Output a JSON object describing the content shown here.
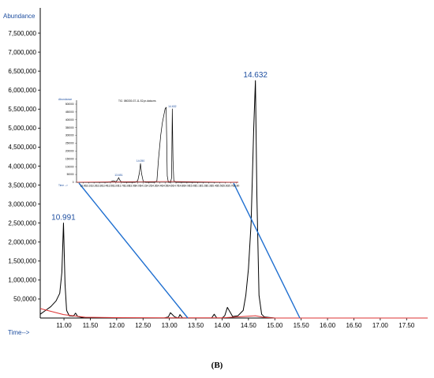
{
  "caption": "(B)",
  "chart_data": [
    {
      "type": "line",
      "ylabel": "Abundance",
      "xlabel": "Time-->",
      "xlim": [
        10.55,
        17.9
      ],
      "ylim": [
        0,
        7500000
      ],
      "x_ticks": [
        "11.00",
        "11.50",
        "12.00",
        "12.50",
        "13.00",
        "13.50",
        "14.00",
        "14.50",
        "15.00",
        "15.50",
        "16.00",
        "16.50",
        "17.00",
        "17.50"
      ],
      "x_tick_values": [
        11.0,
        11.5,
        12.0,
        12.5,
        13.0,
        13.5,
        14.0,
        14.5,
        15.0,
        15.5,
        16.0,
        16.5,
        17.0,
        17.5
      ],
      "y_ticks": [
        "50,0000",
        "1,000,000",
        "1,500,000",
        "2,000,000",
        "2,500,000",
        "3,000,000",
        "3,500,000",
        "4,000,000",
        "4,500,000",
        "5,000,000",
        "5,500,000",
        "6,000,000",
        "6,500,000",
        "7,000,000",
        "7,500,000"
      ],
      "y_tick_values": [
        500000,
        1000000,
        1500000,
        2000000,
        2500000,
        3000000,
        3500000,
        4000000,
        4500000,
        5000000,
        5500000,
        6000000,
        6500000,
        7000000,
        7500000
      ],
      "grid": false,
      "peak_labels": [
        {
          "text": "10.991",
          "x": 10.991,
          "y": 2500000
        },
        {
          "text": "14.632",
          "x": 14.632,
          "y": 6250000
        }
      ],
      "series": [
        {
          "color": "#000000",
          "x": [
            10.55,
            10.65,
            10.75,
            10.85,
            10.92,
            10.96,
            10.991,
            11.02,
            11.05,
            11.1,
            11.18,
            11.22,
            11.26,
            11.4,
            12.0,
            12.9,
            12.98,
            13.02,
            13.1,
            13.17,
            13.2,
            13.25,
            13.8,
            13.85,
            13.9,
            14.0,
            14.05,
            14.1,
            14.2,
            14.3,
            14.4,
            14.45,
            14.5,
            14.55,
            14.6,
            14.632,
            14.66,
            14.7,
            14.75,
            14.8,
            15.0,
            16.0,
            17.0,
            17.9
          ],
          "y": [
            100000,
            200000,
            300000,
            450000,
            650000,
            1200000,
            2500000,
            900000,
            200000,
            60000,
            50000,
            130000,
            40000,
            0,
            0,
            0,
            30000,
            140000,
            30000,
            0,
            90000,
            0,
            0,
            100000,
            0,
            0,
            60000,
            280000,
            40000,
            60000,
            200000,
            600000,
            1300000,
            2500000,
            5000000,
            6250000,
            3200000,
            600000,
            100000,
            30000,
            0,
            0,
            0,
            0
          ]
        },
        {
          "color": "#dd3333",
          "x": [
            10.55,
            10.991,
            11.4,
            12.0,
            13.0,
            14.0,
            14.4,
            14.632,
            14.8,
            15.0,
            16.0,
            17.0,
            17.9
          ],
          "y": [
            250000,
            90000,
            20000,
            10000,
            5000,
            5000,
            40000,
            60000,
            15000,
            0,
            0,
            0,
            0
          ]
        }
      ]
    },
    {
      "type": "line",
      "ylabel": "Abundance",
      "xlabel": "Time -->",
      "title": "TIC: 080330-37-11-S2.pr-data.ms",
      "xlim": [
        12.88,
        15.84
      ],
      "ylim": [
        0,
        500000
      ],
      "y_ticks": [
        "500000",
        "450000",
        "400000",
        "350000",
        "300000",
        "250000",
        "200000",
        "150000",
        "100000",
        "50000",
        "0"
      ],
      "y_tick_values": [
        500000,
        450000,
        400000,
        350000,
        300000,
        250000,
        200000,
        150000,
        100000,
        50000,
        0
      ],
      "x_ticks": [
        "13.00",
        "13.10",
        "13.20",
        "13.30",
        "13.40",
        "13.50",
        "13.60",
        "13.70",
        "13.80",
        "13.90",
        "14.00",
        "14.10",
        "14.20",
        "14.30",
        "14.40",
        "14.50",
        "14.60",
        "14.70",
        "14.80",
        "14.90",
        "15.00",
        "15.10",
        "15.20",
        "15.30",
        "15.40",
        "15.50",
        "15.60",
        "15.70",
        "15.80"
      ],
      "x_tick_values": [
        13.0,
        13.1,
        13.2,
        13.3,
        13.4,
        13.5,
        13.6,
        13.7,
        13.8,
        13.9,
        14.0,
        14.1,
        14.2,
        14.3,
        14.4,
        14.5,
        14.6,
        14.7,
        14.8,
        14.9,
        15.0,
        15.1,
        15.2,
        15.3,
        15.4,
        15.5,
        15.6,
        15.7,
        15.8
      ],
      "peak_labels": [
        {
          "text": "13.651",
          "x": 13.651,
          "y": 30000
        },
        {
          "text": "14.050",
          "x": 14.05,
          "y": 120000
        },
        {
          "text": "14.632",
          "x": 14.632,
          "y": 470000
        }
      ],
      "series": [
        {
          "color": "#000000",
          "x": [
            12.88,
            13.2,
            13.45,
            13.5,
            13.55,
            13.6,
            13.63,
            13.651,
            13.67,
            13.7,
            13.75,
            13.95,
            14.0,
            14.03,
            14.05,
            14.07,
            14.1,
            14.15,
            14.3,
            14.35,
            14.38,
            14.42,
            14.45,
            14.5,
            14.52,
            14.54,
            14.56,
            14.6,
            14.62,
            14.632,
            14.645,
            14.66,
            14.7,
            14.9,
            15.84
          ],
          "y": [
            0,
            0,
            0,
            3000,
            10000,
            4000,
            15000,
            30000,
            15000,
            2000,
            0,
            0,
            10000,
            60000,
            120000,
            55000,
            6000,
            0,
            0,
            8000,
            150000,
            300000,
            380000,
            470000,
            480000,
            40000,
            0,
            0,
            30000,
            470000,
            140000,
            10000,
            0,
            0,
            0
          ]
        },
        {
          "color": "#dd3333",
          "x": [
            12.88,
            13.651,
            14.05,
            14.632,
            15.84
          ],
          "y": [
            1000,
            3000,
            4000,
            5000,
            0
          ]
        }
      ]
    }
  ]
}
